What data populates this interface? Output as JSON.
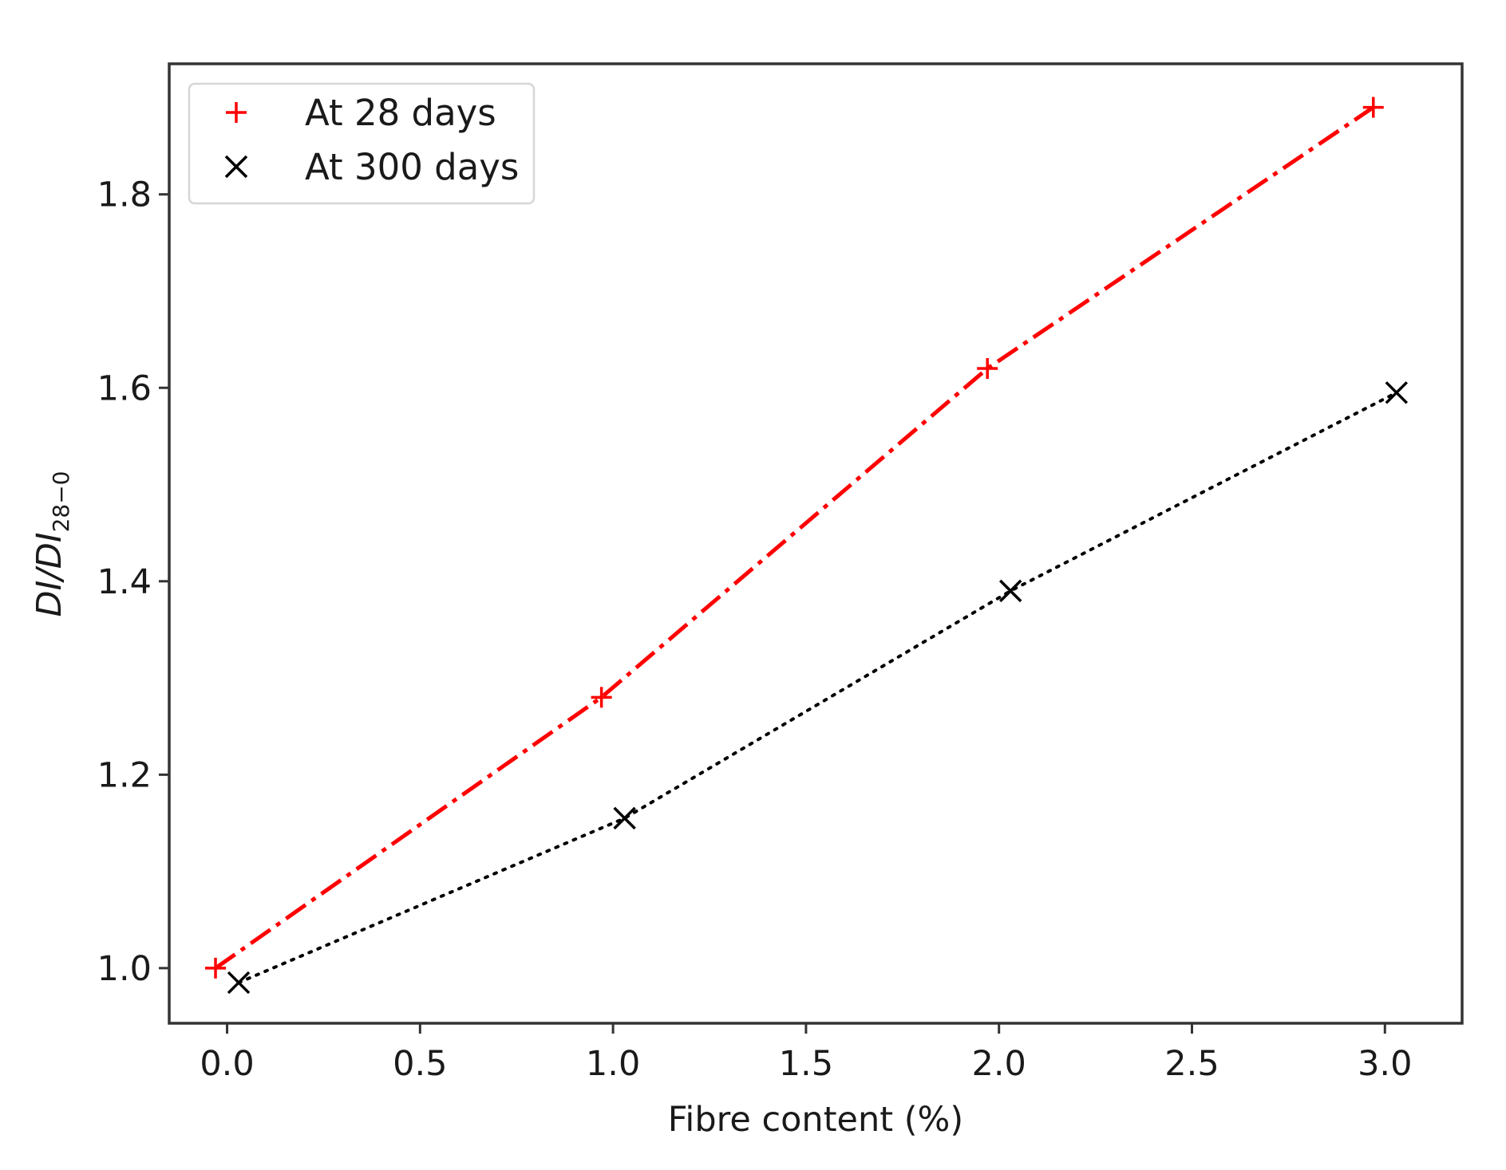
{
  "chart_data": {
    "type": "line",
    "xlabel": "Fibre content (%)",
    "ylabel": {
      "main": "DI/DI",
      "subscript": "28−0"
    },
    "xlim": [
      -0.15,
      3.2
    ],
    "ylim": [
      0.943,
      1.935
    ],
    "xticks": [
      0.0,
      0.5,
      1.0,
      1.5,
      2.0,
      2.5,
      3.0
    ],
    "xtick_labels": [
      "0.0",
      "0.5",
      "1.0",
      "1.5",
      "2.0",
      "2.5",
      "3.0"
    ],
    "yticks": [
      1.0,
      1.2,
      1.4,
      1.6,
      1.8
    ],
    "ytick_labels": [
      "1.0",
      "1.2",
      "1.4",
      "1.6",
      "1.8"
    ],
    "grid": false,
    "legend_position": "top-left",
    "series": [
      {
        "name": "At 28 days",
        "color": "#ff0000",
        "marker": "plus",
        "linestyle": "dashdot",
        "x": [
          -0.03,
          0.97,
          1.97,
          2.97
        ],
        "y": [
          1.0,
          1.28,
          1.62,
          1.89
        ]
      },
      {
        "name": "At 300 days",
        "color": "#000000",
        "marker": "x",
        "linestyle": "dotted",
        "x": [
          0.03,
          1.03,
          2.03,
          3.03
        ],
        "y": [
          0.985,
          1.155,
          1.39,
          1.595
        ]
      }
    ]
  }
}
